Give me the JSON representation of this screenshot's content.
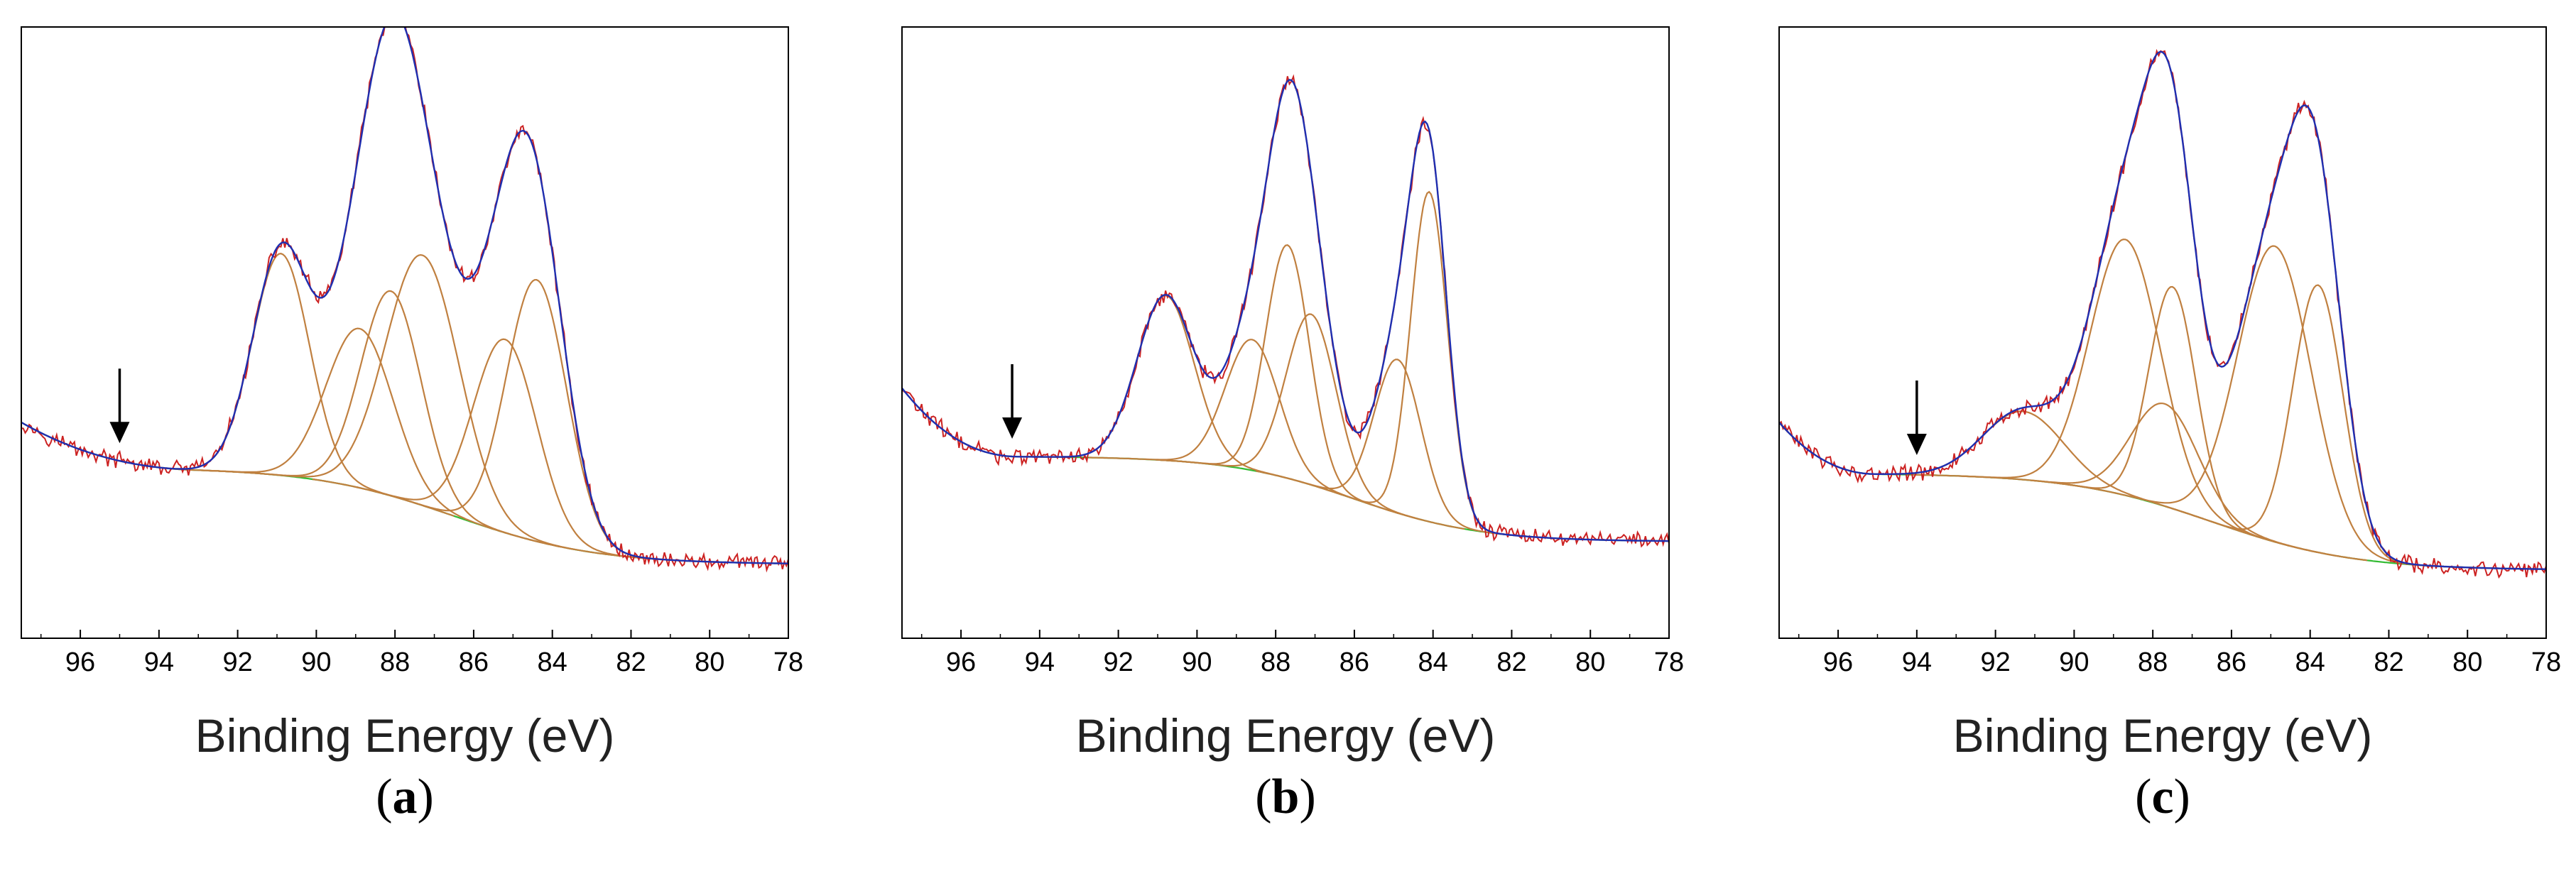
{
  "figure": {
    "colors": {
      "raw": "#cc2222",
      "envelope": "#1f2fb0",
      "component": "#c08040",
      "background": "#33bb33",
      "frame": "#000000",
      "arrow": "#000000"
    }
  },
  "chart_data": [
    {
      "type": "line",
      "panel": "a",
      "label_open": "(",
      "label_letter": "a",
      "label_close": ")",
      "xlabel": "Binding Energy (eV)",
      "xlim": [
        97.5,
        78
      ],
      "x_ticks": [
        "96",
        "94",
        "92",
        "90",
        "88",
        "86",
        "84",
        "82",
        "80",
        "78"
      ],
      "x_tick_values": [
        96,
        94,
        92,
        90,
        88,
        86,
        84,
        82,
        80,
        78
      ],
      "ylim": [
        0,
        1
      ],
      "arrow_x": 95,
      "background": {
        "left_level": 0.25,
        "right_level": 0.08,
        "center": 86.5,
        "width": 1.8,
        "left_start": 97.5,
        "left_start_level": 0.33,
        "tail_end": 93.0
      },
      "peaks": [
        {
          "center": 84.4,
          "height": 0.46,
          "fwhm": 1.8
        },
        {
          "center": 85.2,
          "height": 0.34,
          "fwhm": 1.9
        },
        {
          "center": 87.3,
          "height": 0.44,
          "fwhm": 2.2
        },
        {
          "center": 88.1,
          "height": 0.36,
          "fwhm": 1.8
        },
        {
          "center": 88.9,
          "height": 0.28,
          "fwhm": 2.0
        },
        {
          "center": 90.9,
          "height": 0.39,
          "fwhm": 1.7
        }
      ]
    },
    {
      "type": "line",
      "panel": "b",
      "label_open": "(",
      "label_letter": "b",
      "label_close": ")",
      "xlabel": "Binding Energy (eV)",
      "xlim": [
        97.5,
        78
      ],
      "x_ticks": [
        "96",
        "94",
        "92",
        "90",
        "88",
        "86",
        "84",
        "82",
        "80",
        "78"
      ],
      "x_tick_values": [
        96,
        94,
        92,
        90,
        88,
        86,
        84,
        82,
        80,
        78
      ],
      "ylim": [
        0,
        1
      ],
      "arrow_x": 94.7,
      "background": {
        "left_level": 0.27,
        "right_level": 0.12,
        "center": 86.0,
        "width": 1.6,
        "left_start": 97.5,
        "left_start_level": 0.39,
        "tail_end": 94.5
      },
      "peaks": [
        {
          "center": 84.1,
          "height": 0.58,
          "fwhm": 1.1
        },
        {
          "center": 84.9,
          "height": 0.27,
          "fwhm": 1.4
        },
        {
          "center": 87.1,
          "height": 0.3,
          "fwhm": 1.5
        },
        {
          "center": 87.7,
          "height": 0.41,
          "fwhm": 1.3
        },
        {
          "center": 88.6,
          "height": 0.23,
          "fwhm": 1.6
        },
        {
          "center": 90.8,
          "height": 0.29,
          "fwhm": 1.7
        }
      ]
    },
    {
      "type": "line",
      "panel": "c",
      "label_open": "(",
      "label_letter": "c",
      "label_close": ")",
      "xlabel": "Binding Energy (eV)",
      "xlim": [
        97.5,
        78
      ],
      "x_ticks": [
        "96",
        "94",
        "92",
        "90",
        "88",
        "86",
        "84",
        "82",
        "80",
        "78"
      ],
      "x_tick_values": [
        96,
        94,
        92,
        90,
        88,
        86,
        84,
        82,
        80,
        78
      ],
      "ylim": [
        0,
        1
      ],
      "arrow_x": 94.0,
      "background": {
        "left_level": 0.24,
        "right_level": 0.07,
        "center": 86.5,
        "width": 1.8,
        "left_start": 97.5,
        "left_start_level": 0.33,
        "tail_end": 95.0
      },
      "peaks": [
        {
          "center": 83.8,
          "height": 0.47,
          "fwhm": 1.5
        },
        {
          "center": 84.9,
          "height": 0.52,
          "fwhm": 2.2
        },
        {
          "center": 87.5,
          "height": 0.39,
          "fwhm": 1.4
        },
        {
          "center": 87.7,
          "height": 0.18,
          "fwhm": 2.0
        },
        {
          "center": 88.7,
          "height": 0.45,
          "fwhm": 2.1
        },
        {
          "center": 91.3,
          "height": 0.12,
          "fwhm": 2.4
        }
      ]
    }
  ]
}
